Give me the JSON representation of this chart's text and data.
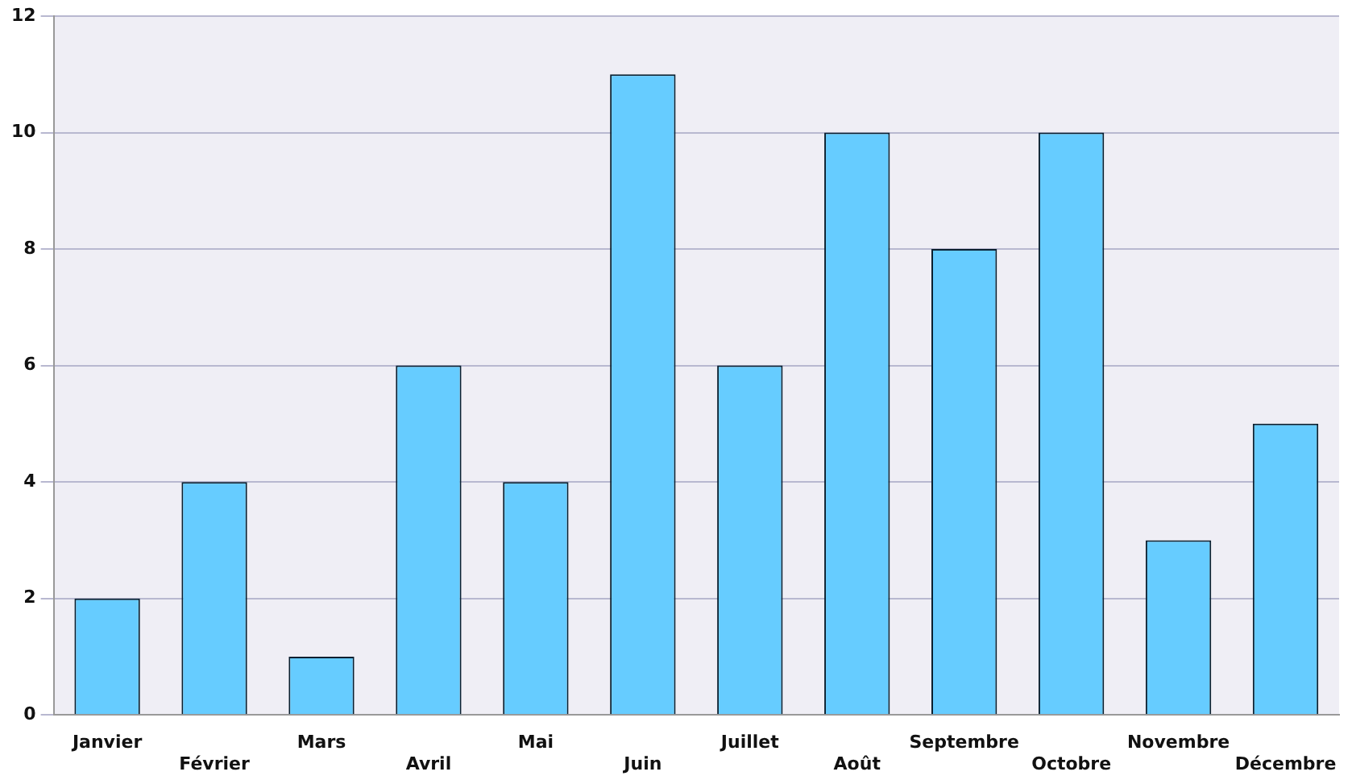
{
  "chart_data": {
    "type": "bar",
    "categories": [
      "Janvier",
      "Février",
      "Mars",
      "Avril",
      "Mai",
      "Juin",
      "Juillet",
      "Août",
      "Septembre",
      "Octobre",
      "Novembre",
      "Décembre"
    ],
    "values": [
      2,
      4,
      1,
      6,
      4,
      11,
      6,
      10,
      8,
      10,
      3,
      5
    ],
    "color": "#66ccff",
    "ylim": [
      0,
      12
    ],
    "yticks": [
      0,
      2,
      4,
      6,
      8,
      10,
      12
    ],
    "grid": "y",
    "legend": false
  }
}
